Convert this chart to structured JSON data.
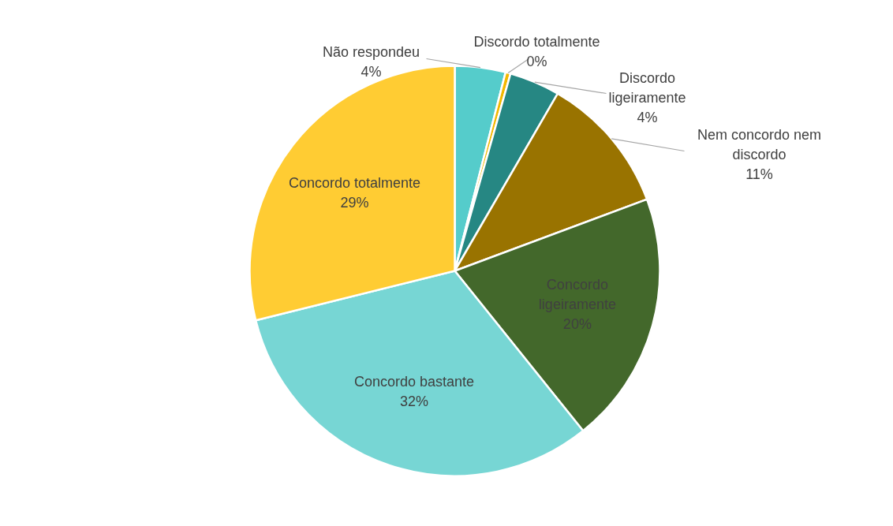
{
  "chart_data": {
    "type": "pie",
    "categories": [
      "Não respondeu",
      "Discordo totalmente",
      "Discordo ligeiramente",
      "Nem concordo nem discordo",
      "Concordo ligeiramente",
      "Concordo bastante",
      "Concordo totalmente"
    ],
    "values": [
      4,
      0.4,
      4,
      11,
      20,
      32,
      29
    ],
    "value_labels": [
      "4%",
      "0%",
      "4%",
      "11%",
      "20%",
      "32%",
      "29%"
    ],
    "colors": [
      "#55cccb",
      "#f2b800",
      "#268783",
      "#997300",
      "#43682b",
      "#77d6d4",
      "#ffcc33"
    ],
    "legend": false
  }
}
